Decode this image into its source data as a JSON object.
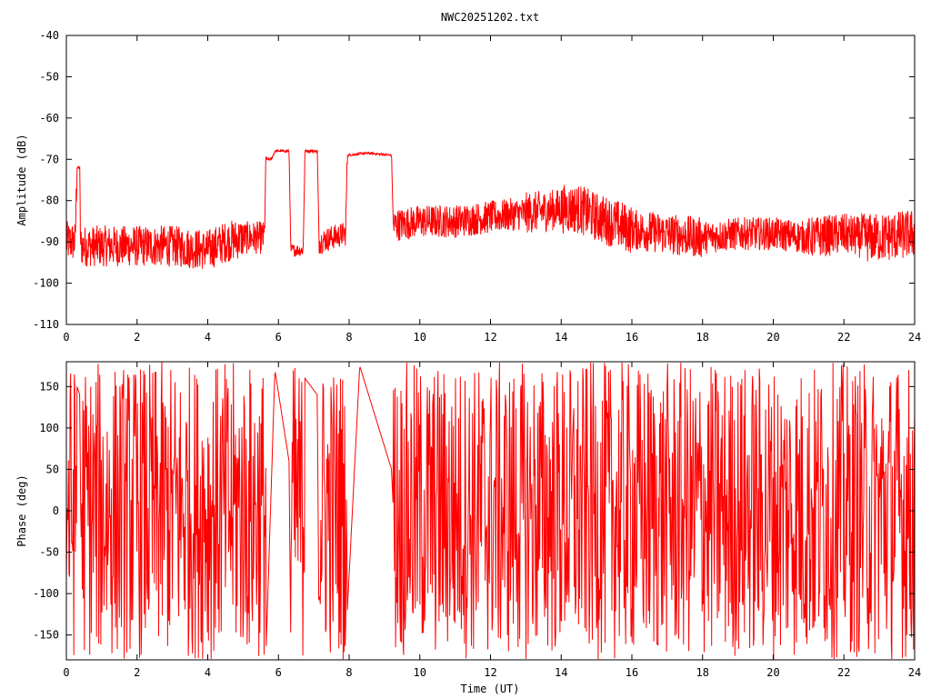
{
  "chart_data": [
    {
      "type": "line",
      "title": "NWC20251202.txt",
      "xlabel": "",
      "ylabel": "Amplitude (dB)",
      "xlim": [
        0,
        24
      ],
      "ylim": [
        -110,
        -40
      ],
      "xticks": [
        0,
        2,
        4,
        6,
        8,
        10,
        12,
        14,
        16,
        18,
        20,
        22,
        24
      ],
      "yticks": [
        -110,
        -100,
        -90,
        -80,
        -70,
        -60,
        -50,
        -40
      ],
      "color": "#ff0000",
      "grid": false,
      "series": [
        {
          "x": [
            0.0,
            0.25,
            0.3,
            0.38,
            0.4,
            1.0,
            2.0,
            3.0,
            4.0,
            4.5,
            5.0,
            5.6,
            5.65,
            5.8,
            5.9,
            6.3,
            6.35,
            6.7,
            6.75,
            7.1,
            7.15,
            7.5,
            7.9,
            7.95,
            8.5,
            9.2,
            9.25,
            10.0,
            11.0,
            12.0,
            13.0,
            14.0,
            14.5,
            15.0,
            16.0,
            17.0,
            18.0,
            19.0,
            20.0,
            21.0,
            22.0,
            22.5,
            23.0,
            24.0
          ],
          "y": [
            -90,
            -90,
            -72,
            -72,
            -91,
            -91,
            -91,
            -91,
            -92,
            -90,
            -89,
            -89,
            -70,
            -70,
            -68,
            -68,
            -92,
            -92,
            -68,
            -68,
            -90,
            -89,
            -88,
            -69,
            -68.5,
            -69,
            -86,
            -85,
            -85,
            -84,
            -83,
            -82,
            -82,
            -84,
            -87,
            -88,
            -89,
            -88,
            -88,
            -89,
            -88,
            -89,
            -89,
            -88
          ],
          "spread": [
            5,
            5,
            0.3,
            0.3,
            5,
            5,
            5,
            5,
            5,
            5,
            4,
            4,
            0.4,
            0.4,
            0.3,
            0.3,
            1.5,
            1.5,
            0.3,
            0.3,
            3,
            3,
            3,
            0.3,
            0.3,
            0.3,
            4,
            4,
            4,
            4,
            5,
            6,
            6,
            6,
            5,
            5,
            4,
            4,
            4,
            5,
            5,
            6,
            6,
            6
          ]
        }
      ]
    },
    {
      "type": "line",
      "title": "",
      "xlabel": "Time (UT)",
      "ylabel": "Phase (deg)",
      "xlim": [
        0,
        24
      ],
      "ylim": [
        -180,
        180
      ],
      "xticks": [
        0,
        2,
        4,
        6,
        8,
        10,
        12,
        14,
        16,
        18,
        20,
        22,
        24
      ],
      "yticks": [
        -150,
        -100,
        -50,
        0,
        50,
        100,
        150
      ],
      "color": "#ff0000",
      "grid": false,
      "series": [
        {
          "x": [
            0.0,
            0.25,
            0.3,
            0.38,
            0.4,
            5.6,
            5.65,
            5.9,
            6.3,
            6.35,
            6.7,
            6.75,
            7.1,
            7.15,
            7.9,
            7.95,
            8.3,
            9.2,
            9.25,
            24.0
          ],
          "y": [
            0,
            0,
            150,
            140,
            0,
            0,
            -170,
            170,
            60,
            -170,
            -170,
            160,
            140,
            -170,
            -170,
            -120,
            175,
            50,
            0,
            0
          ],
          "noisy": [
            true,
            true,
            false,
            false,
            true,
            true,
            false,
            false,
            false,
            true,
            true,
            false,
            false,
            true,
            true,
            false,
            false,
            false,
            true,
            true
          ]
        }
      ]
    }
  ]
}
